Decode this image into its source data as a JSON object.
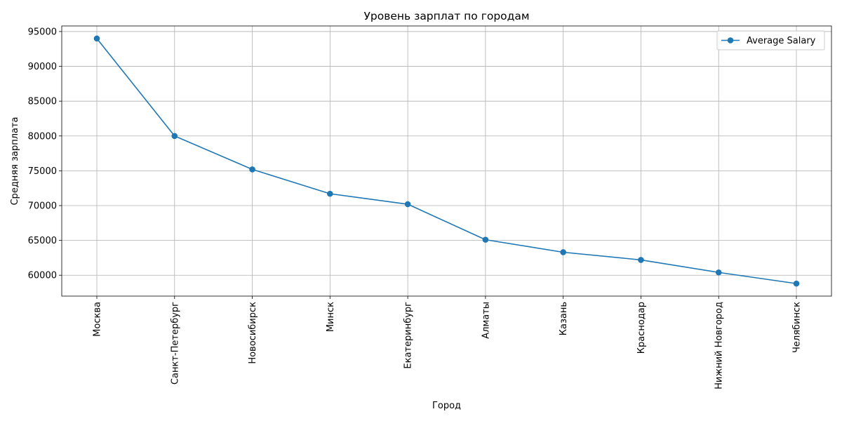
{
  "chart_data": {
    "type": "line",
    "title": "Уровень зарплат по городам",
    "xlabel": "Город",
    "ylabel": "Средняя зарплата",
    "categories": [
      "Москва",
      "Санкт-Петербург",
      "Новосибирск",
      "Минск",
      "Екатеринбург",
      "Алматы",
      "Казань",
      "Краснодар",
      "Нижний Новгород",
      "Челябинск"
    ],
    "series": [
      {
        "name": "Average Salary",
        "color": "#1f77b4",
        "marker": "circle",
        "values": [
          94000,
          80000,
          75200,
          71700,
          70200,
          65100,
          63300,
          62200,
          60400,
          58800
        ]
      }
    ],
    "ylim": [
      57000,
      95800
    ],
    "yticks": [
      60000,
      65000,
      70000,
      75000,
      80000,
      85000,
      90000,
      95000
    ],
    "ytick_labels": [
      "60000",
      "65000",
      "70000",
      "75000",
      "80000",
      "85000",
      "90000",
      "95000"
    ],
    "grid": true,
    "legend": "upper-right",
    "x_tick_rotation": "vertical"
  }
}
